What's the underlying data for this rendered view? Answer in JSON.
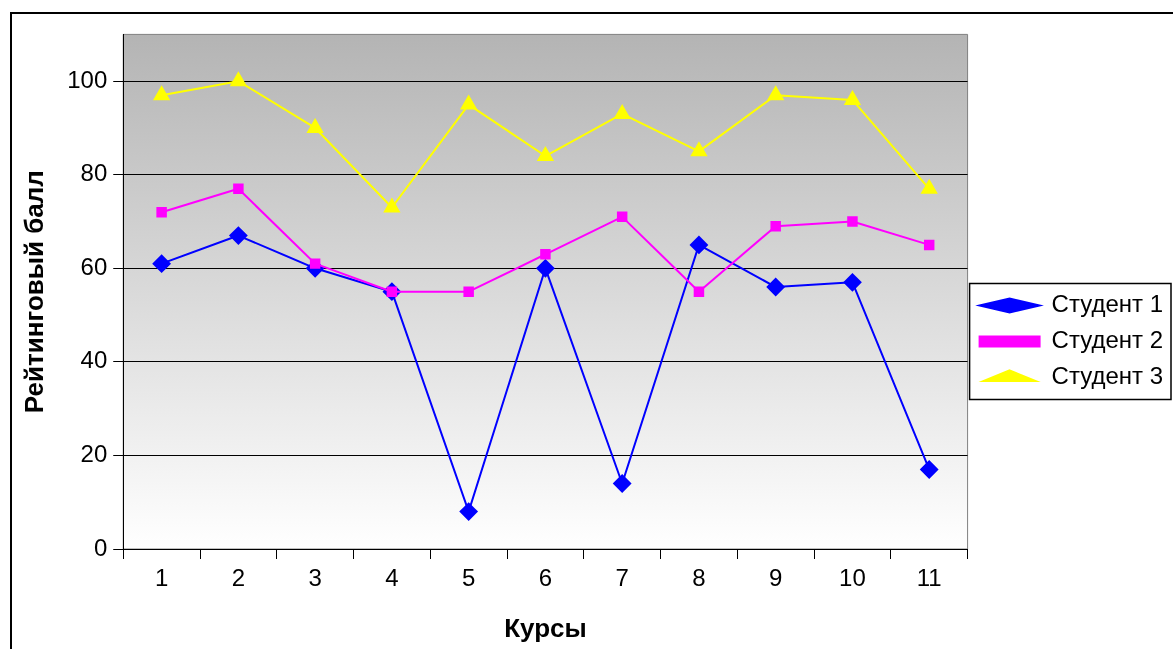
{
  "chart_data": {
    "type": "line",
    "xlabel": "Курсы",
    "ylabel": "Рейтинговый балл",
    "categories": [
      "1",
      "2",
      "3",
      "4",
      "5",
      "6",
      "7",
      "8",
      "9",
      "10",
      "11"
    ],
    "series": [
      {
        "name": "Студент 1",
        "color": "#0000ff",
        "marker": "diamond",
        "values": [
          61,
          67,
          60,
          55,
          8,
          60,
          14,
          65,
          56,
          57,
          17
        ]
      },
      {
        "name": "Студент 2",
        "color": "#ff00ff",
        "marker": "square",
        "values": [
          72,
          77,
          61,
          55,
          55,
          63,
          71,
          55,
          69,
          70,
          65
        ]
      },
      {
        "name": "Студент 3",
        "color": "#ffff00",
        "marker": "triangle",
        "values": [
          97,
          100,
          90,
          73,
          95,
          84,
          93,
          85,
          97,
          96,
          77
        ]
      }
    ],
    "ylim": [
      0,
      110
    ],
    "yticks": [
      0,
      20,
      40,
      60,
      80,
      100
    ],
    "grid": "y",
    "legend": "right",
    "line_style": "solid"
  }
}
